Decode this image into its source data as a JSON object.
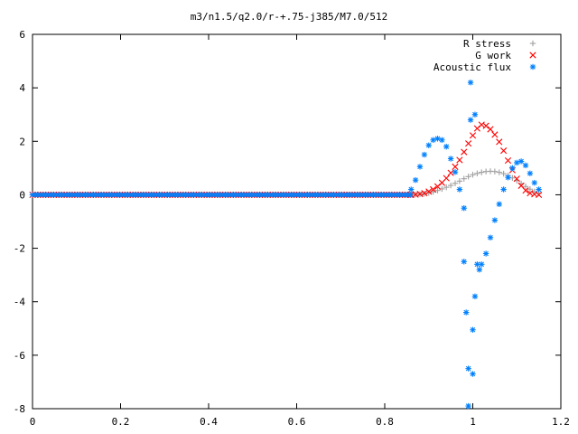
{
  "chart_data": {
    "type": "scatter",
    "title": "m3/n1.5/q2.0/r-+.75-j385/M7.0/512",
    "xlabel": "",
    "ylabel": "",
    "xlim": [
      0,
      1.2
    ],
    "ylim": [
      -8,
      6
    ],
    "x_ticks": [
      "0",
      "0.2",
      "0.4",
      "0.6",
      "0.8",
      "1",
      "1.2"
    ],
    "y_ticks": [
      "6",
      "4",
      "2",
      "0",
      "-2",
      "-4",
      "-6",
      "-8"
    ],
    "grid": false,
    "legend_position": "top-right",
    "series": [
      {
        "name": "R stress",
        "marker": "plus",
        "color": "#a0a0a0",
        "points": [
          [
            0.86,
            0.0
          ],
          [
            0.87,
            0.01
          ],
          [
            0.88,
            0.02
          ],
          [
            0.89,
            0.04
          ],
          [
            0.9,
            0.07
          ],
          [
            0.91,
            0.11
          ],
          [
            0.92,
            0.16
          ],
          [
            0.93,
            0.22
          ],
          [
            0.94,
            0.28
          ],
          [
            0.95,
            0.35
          ],
          [
            0.96,
            0.43
          ],
          [
            0.97,
            0.51
          ],
          [
            0.98,
            0.6
          ],
          [
            0.99,
            0.68
          ],
          [
            1.0,
            0.75
          ],
          [
            1.01,
            0.8
          ],
          [
            1.02,
            0.84
          ],
          [
            1.03,
            0.87
          ],
          [
            1.04,
            0.88
          ],
          [
            1.05,
            0.87
          ],
          [
            1.06,
            0.84
          ],
          [
            1.07,
            0.79
          ],
          [
            1.08,
            0.72
          ],
          [
            1.09,
            0.63
          ],
          [
            1.1,
            0.53
          ],
          [
            1.11,
            0.42
          ],
          [
            1.12,
            0.31
          ],
          [
            1.13,
            0.21
          ],
          [
            1.14,
            0.12
          ],
          [
            1.15,
            0.05
          ]
        ]
      },
      {
        "name": "G work",
        "marker": "cross",
        "color": "#ff0000",
        "points": [
          [
            0.86,
            0.0
          ],
          [
            0.87,
            0.01
          ],
          [
            0.88,
            0.03
          ],
          [
            0.89,
            0.06
          ],
          [
            0.9,
            0.12
          ],
          [
            0.91,
            0.2
          ],
          [
            0.92,
            0.31
          ],
          [
            0.93,
            0.45
          ],
          [
            0.94,
            0.62
          ],
          [
            0.95,
            0.82
          ],
          [
            0.96,
            1.05
          ],
          [
            0.97,
            1.3
          ],
          [
            0.98,
            1.6
          ],
          [
            0.99,
            1.92
          ],
          [
            1.0,
            2.22
          ],
          [
            1.01,
            2.48
          ],
          [
            1.02,
            2.62
          ],
          [
            1.03,
            2.58
          ],
          [
            1.04,
            2.45
          ],
          [
            1.05,
            2.25
          ],
          [
            1.06,
            1.98
          ],
          [
            1.07,
            1.65
          ],
          [
            1.08,
            1.28
          ],
          [
            1.09,
            0.92
          ],
          [
            1.1,
            0.6
          ],
          [
            1.11,
            0.34
          ],
          [
            1.12,
            0.16
          ],
          [
            1.13,
            0.06
          ],
          [
            1.14,
            0.02
          ],
          [
            1.15,
            0.0
          ]
        ]
      },
      {
        "name": "Acoustic flux",
        "marker": "star",
        "color": "#0080ff",
        "points": [
          [
            0.86,
            0.2
          ],
          [
            0.87,
            0.55
          ],
          [
            0.88,
            1.05
          ],
          [
            0.89,
            1.5
          ],
          [
            0.9,
            1.85
          ],
          [
            0.91,
            2.05
          ],
          [
            0.92,
            2.1
          ],
          [
            0.93,
            2.05
          ],
          [
            0.94,
            1.8
          ],
          [
            0.95,
            1.35
          ],
          [
            0.96,
            0.85
          ],
          [
            0.97,
            0.2
          ],
          [
            0.98,
            -0.5
          ],
          [
            0.98,
            -2.5
          ],
          [
            0.985,
            -4.4
          ],
          [
            0.99,
            -6.5
          ],
          [
            0.99,
            -7.9
          ],
          [
            0.995,
            4.2
          ],
          [
            0.995,
            2.8
          ],
          [
            1.0,
            -6.7
          ],
          [
            1.0,
            -5.05
          ],
          [
            1.005,
            -3.8
          ],
          [
            1.005,
            3.0
          ],
          [
            1.01,
            -2.6
          ],
          [
            1.015,
            -2.8
          ],
          [
            1.02,
            -2.6
          ],
          [
            1.03,
            -2.2
          ],
          [
            1.04,
            -1.6
          ],
          [
            1.05,
            -0.95
          ],
          [
            1.06,
            -0.35
          ],
          [
            1.07,
            0.2
          ],
          [
            1.08,
            0.65
          ],
          [
            1.09,
            1.0
          ],
          [
            1.1,
            1.2
          ],
          [
            1.11,
            1.25
          ],
          [
            1.12,
            1.1
          ],
          [
            1.13,
            0.8
          ],
          [
            1.14,
            0.45
          ],
          [
            1.15,
            0.2
          ]
        ]
      }
    ],
    "flat_zero_range": [
      0.0,
      0.86
    ]
  }
}
